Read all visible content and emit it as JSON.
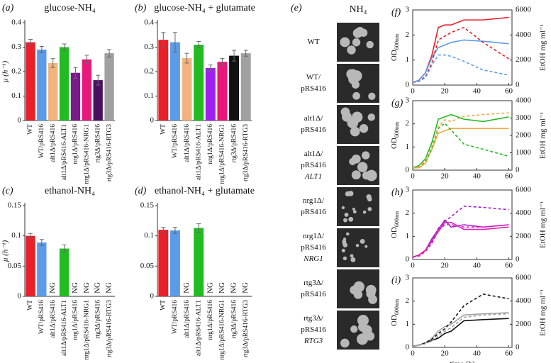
{
  "chart_data": [
    {
      "type": "bar",
      "panel": "(a)",
      "title": "glucose-NH₄",
      "y_label": "μ (h⁻¹)",
      "categories": [
        "WT",
        "WT/pRS416",
        "alt1Δ/pRS416",
        "alt1Δ/pRS416-ALT1",
        "nrg1Δ/pRS416",
        "nrg1Δ/pRS416-NRG1",
        "rtg3Δ/pRS416",
        "rtg3Δ/pRS416-RTG3"
      ],
      "values": [
        0.32,
        0.29,
        0.235,
        0.3,
        0.195,
        0.25,
        0.165,
        0.275
      ],
      "errors": [
        0.012,
        0.013,
        0.018,
        0.013,
        0.022,
        0.017,
        0.02,
        0.015
      ],
      "colors": [
        "#e8202a",
        "#5b9be8",
        "#f2b47e",
        "#22bb22",
        "#7a1a8a",
        "#e8187a",
        "#4a1060",
        "#a0a0a0"
      ],
      "ylim": [
        0,
        0.4
      ],
      "yticks": [
        0,
        0.1,
        0.2,
        0.3,
        0.4
      ]
    },
    {
      "type": "bar",
      "panel": "(b)",
      "title": "glucose-NH₄ + glutamate",
      "categories": [
        "WT",
        "WT/pRS416",
        "alt1Δ/pRS416",
        "alt1Δ/pRS416-ALT1",
        "nrg1Δ/pRS416",
        "nrg1Δ/pRS416-NRG1",
        "rtg3Δ/pRS416",
        "rtg3Δ/pRS416-RTG3"
      ],
      "values": [
        0.33,
        0.32,
        0.255,
        0.31,
        0.215,
        0.24,
        0.265,
        0.275
      ],
      "errors": [
        0.03,
        0.04,
        0.02,
        0.013,
        0.012,
        0.014,
        0.022,
        0.012
      ],
      "colors": [
        "#e8202a",
        "#5b9be8",
        "#f2b47e",
        "#22bb22",
        "#a020f0",
        "#e8187a",
        "#111111",
        "#a0a0a0"
      ],
      "ylim": [
        0,
        0.4
      ],
      "yticks": [
        0,
        0.1,
        0.2,
        0.3,
        0.4
      ]
    },
    {
      "type": "bar",
      "panel": "(c)",
      "title": "ethanol-NH₄",
      "y_label": "μ (h⁻¹)",
      "categories": [
        "WT",
        "WT/pRS416",
        "alt1Δ/pRS416",
        "alt1Δ/pRS416-ALT1",
        "nrg1Δ/pRS416",
        "nrg1Δ/pRS416-NRG1",
        "rtg3Δ/pRS416",
        "rtg3Δ/pRS416-RTG3"
      ],
      "values": [
        0.1,
        0.089,
        null,
        0.079,
        null,
        null,
        null,
        null
      ],
      "value_labels": [
        null,
        null,
        "NG",
        null,
        "NG",
        "NG",
        "NG",
        "NG"
      ],
      "errors": [
        0.004,
        0.005,
        null,
        0.006,
        null,
        null,
        null,
        null
      ],
      "colors": [
        "#e8202a",
        "#5b9be8",
        null,
        "#22bb22",
        null,
        null,
        null,
        null
      ],
      "ylim": [
        0,
        0.15
      ],
      "yticks": [
        0,
        0.05,
        0.1,
        0.15
      ]
    },
    {
      "type": "bar",
      "panel": "(d)",
      "title": "ethanol-NH₄ + glutamate",
      "categories": [
        "WT",
        "WT/pRS416",
        "alt1Δ/pRS416",
        "alt1Δ/pRS416-ALT1",
        "nrg1Δ/pRS416",
        "nrg1Δ/pRS416-NRG1",
        "rtg3Δ/pRS416",
        "rtg3Δ/pRS416-RTG3"
      ],
      "values": [
        0.11,
        0.109,
        null,
        0.113,
        null,
        null,
        null,
        null
      ],
      "value_labels": [
        null,
        null,
        "NG",
        null,
        "NG",
        "NG",
        "NG",
        "NG"
      ],
      "errors": [
        0.004,
        0.005,
        null,
        0.007,
        null,
        null,
        null,
        null
      ],
      "colors": [
        "#e8202a",
        "#5b9be8",
        null,
        "#22bb22",
        null,
        null,
        null,
        null
      ],
      "ylim": [
        0,
        0.15
      ],
      "yticks": [
        0,
        0.05,
        0.1,
        0.15
      ]
    },
    {
      "type": "line",
      "panel": "(f)",
      "y_label": "OD",
      "y_label_sub": "600nm",
      "y2_label": "EtOH mg ml⁻¹",
      "x": [
        0,
        4,
        8,
        12,
        16,
        20,
        24,
        32,
        44,
        60
      ],
      "series": [
        {
          "color": "#e8202a",
          "style": "solid",
          "values": [
            0.1,
            0.2,
            0.5,
            1.2,
            2.3,
            2.4,
            2.4,
            2.6,
            2.6,
            2.7
          ]
        },
        {
          "color": "#5b9be8",
          "style": "solid",
          "values": [
            0.1,
            0.2,
            0.5,
            1.1,
            1.5,
            1.6,
            1.7,
            1.8,
            1.75,
            1.65
          ]
        },
        {
          "color": "#e8202a",
          "style": "dashed",
          "axis": "y2",
          "values": [
            200,
            300,
            700,
            1800,
            3600,
            3900,
            4200,
            4600,
            3400,
            2100
          ]
        },
        {
          "color": "#5b9be8",
          "style": "dashed",
          "axis": "y2",
          "values": [
            200,
            300,
            600,
            1600,
            2400,
            2400,
            2300,
            1900,
            1200,
            800
          ]
        }
      ],
      "xlim": [
        0,
        62
      ],
      "xticks": [
        0,
        20,
        40,
        60
      ],
      "ylim": [
        0,
        3
      ],
      "yticks": [
        0,
        1,
        2,
        3
      ],
      "y2lim": [
        0,
        6000
      ],
      "y2ticks": [
        0,
        2000,
        4000,
        6000
      ]
    },
    {
      "type": "line",
      "panel": "(g)",
      "y_label": "OD",
      "y_label_sub": "600nm",
      "y2_label": "EtOH mg ml⁻¹",
      "x": [
        0,
        4,
        8,
        12,
        16,
        20,
        24,
        32,
        44,
        60
      ],
      "series": [
        {
          "color": "#22bb22",
          "style": "solid",
          "values": [
            0.1,
            0.2,
            0.5,
            1.2,
            2.2,
            2.3,
            2.4,
            2.2,
            2.1,
            2.3
          ]
        },
        {
          "color": "#f0a848",
          "style": "solid",
          "values": [
            0.1,
            0.1,
            0.3,
            0.9,
            1.6,
            1.7,
            1.8,
            1.8,
            1.8,
            1.8
          ]
        },
        {
          "color": "#22bb22",
          "style": "dashed",
          "axis": "y2",
          "values": [
            100,
            200,
            500,
            1300,
            2400,
            2700,
            2300,
            1500,
            1200,
            800
          ]
        },
        {
          "color": "#f0a848",
          "style": "dashed",
          "axis": "y2",
          "values": [
            100,
            200,
            600,
            1400,
            2500,
            2900,
            2800,
            3100,
            3200,
            3300
          ]
        }
      ],
      "xlim": [
        0,
        62
      ],
      "xticks": [
        0,
        20,
        40,
        60
      ],
      "ylim": [
        0,
        3
      ],
      "yticks": [
        0,
        1,
        2,
        3
      ],
      "y2lim": [
        0,
        4000
      ],
      "y2ticks": [
        0,
        1000,
        2000,
        3000,
        4000
      ]
    },
    {
      "type": "line",
      "panel": "(h)",
      "y_label": "OD",
      "y_label_sub": "600nm",
      "y2_label": "EtOH mg ml⁻¹",
      "x": [
        0,
        4,
        8,
        12,
        16,
        20,
        24,
        32,
        44,
        60
      ],
      "series": [
        {
          "color": "#a020d0",
          "style": "solid",
          "values": [
            0.1,
            0.2,
            0.4,
            0.9,
            1.3,
            1.7,
            1.4,
            1.5,
            1.4,
            1.5
          ]
        },
        {
          "color": "#e020b0",
          "style": "solid",
          "values": [
            0.1,
            0.2,
            0.4,
            0.8,
            1.2,
            1.6,
            1.6,
            1.3,
            1.3,
            1.4
          ]
        },
        {
          "color": "#a020d0",
          "style": "dashed",
          "axis": "y2",
          "values": [
            200,
            300,
            700,
            1500,
            2700,
            3300,
            3700,
            4600,
            4500,
            4300
          ]
        },
        {
          "color": "#e020b0",
          "style": "dashed",
          "axis": "y2",
          "values": [
            200,
            300,
            700,
            1400,
            2500,
            3000,
            3000,
            2800,
            2800,
            3000
          ]
        }
      ],
      "xlim": [
        0,
        62
      ],
      "xticks": [
        0,
        20,
        40,
        60
      ],
      "ylim": [
        0,
        3
      ],
      "yticks": [
        0,
        1,
        2,
        3
      ],
      "y2lim": [
        0,
        6000
      ],
      "y2ticks": [
        0,
        2000,
        4000,
        6000
      ]
    },
    {
      "type": "line",
      "panel": "(i)",
      "x_label": "time (h)",
      "y_label": "OD",
      "y_label_sub": "600nm",
      "y2_label": "EtOH mg ml⁻¹",
      "x": [
        0,
        4,
        8,
        12,
        16,
        20,
        24,
        32,
        44,
        60
      ],
      "series": [
        {
          "color": "#111111",
          "style": "solid",
          "values": [
            0.05,
            0.1,
            0.2,
            0.3,
            0.4,
            0.6,
            0.7,
            1.15,
            1.2,
            1.25
          ]
        },
        {
          "color": "#a0a0a0",
          "style": "solid",
          "values": [
            0.05,
            0.1,
            0.2,
            0.4,
            0.7,
            0.9,
            1.0,
            1.4,
            1.45,
            1.5
          ]
        },
        {
          "color": "#111111",
          "style": "dashed",
          "axis": "y2",
          "values": [
            100,
            200,
            400,
            700,
            1200,
            1600,
            2200,
            3600,
            4600,
            4200
          ]
        },
        {
          "color": "#a0a0a0",
          "style": "dashed",
          "axis": "y2",
          "values": [
            100,
            200,
            300,
            600,
            1000,
            1400,
            1700,
            2600,
            2800,
            2900
          ]
        }
      ],
      "xlim": [
        0,
        62
      ],
      "xticks": [
        0,
        20,
        40,
        60
      ],
      "ylim": [
        0,
        3
      ],
      "yticks": [
        0,
        1,
        2,
        3
      ],
      "y2lim": [
        0,
        6000
      ],
      "y2ticks": [
        0,
        2000,
        4000,
        6000
      ]
    }
  ],
  "images_panel": {
    "panel": "(e)",
    "title": "NH₄",
    "labels": [
      [
        "WT"
      ],
      [
        "WT/",
        "pRS416"
      ],
      [
        "alt1Δ/",
        "pRS416"
      ],
      [
        "alt1Δ/",
        "pRS416",
        "ALT1"
      ],
      [
        "nrg1Δ/",
        "pRS416"
      ],
      [
        "nrg1Δ/",
        "pRS416",
        "NRG1"
      ],
      [
        "rtg3Δ/",
        "pRS416"
      ],
      [
        "rtg3Δ/",
        "pRS416",
        "RTG3"
      ]
    ]
  }
}
